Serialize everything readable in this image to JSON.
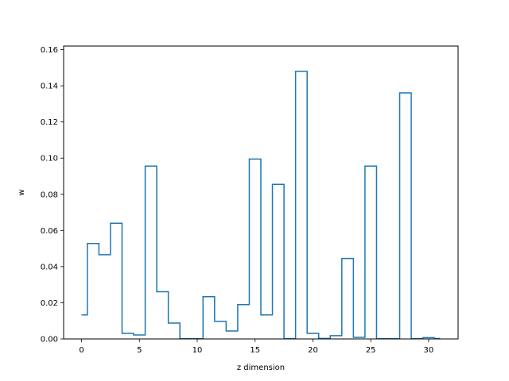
{
  "chart_data": {
    "type": "line",
    "drawstyle": "steps-mid",
    "title": "",
    "xlabel": "z dimension",
    "ylabel": "w",
    "xlim": [
      -1.55,
      32.55
    ],
    "ylim": [
      0,
      0.162
    ],
    "x_ticks": [
      0,
      5,
      10,
      15,
      20,
      25,
      30
    ],
    "x_tick_labels": [
      "0",
      "5",
      "10",
      "15",
      "20",
      "25",
      "30"
    ],
    "y_ticks": [
      0.0,
      0.02,
      0.04,
      0.06,
      0.08,
      0.1,
      0.12,
      0.14,
      0.16
    ],
    "y_tick_labels": [
      "0.00",
      "0.02",
      "0.04",
      "0.06",
      "0.08",
      "0.10",
      "0.12",
      "0.14",
      "0.16"
    ],
    "grid": false,
    "line_color": "#1f77b4",
    "series": [
      {
        "x": [
          0,
          1,
          2,
          3,
          4,
          5,
          6,
          7,
          8,
          9,
          10,
          11,
          12,
          13,
          14,
          15,
          16,
          17,
          18,
          19,
          20,
          21,
          22,
          23,
          24,
          25,
          26,
          27,
          28,
          29,
          30,
          31
        ],
        "values": [
          0.0133,
          0.0528,
          0.0466,
          0.064,
          0.0031,
          0.0022,
          0.0956,
          0.0261,
          0.0088,
          0.0001,
          0.0001,
          0.0234,
          0.0097,
          0.0044,
          0.019,
          0.0995,
          0.0133,
          0.0855,
          0.0001,
          0.148,
          0.0031,
          0.0003,
          0.0018,
          0.0445,
          0.0009,
          0.0956,
          0.0001,
          0.0001,
          0.1361,
          0.0001,
          0.0007,
          0.0002
        ]
      }
    ]
  }
}
